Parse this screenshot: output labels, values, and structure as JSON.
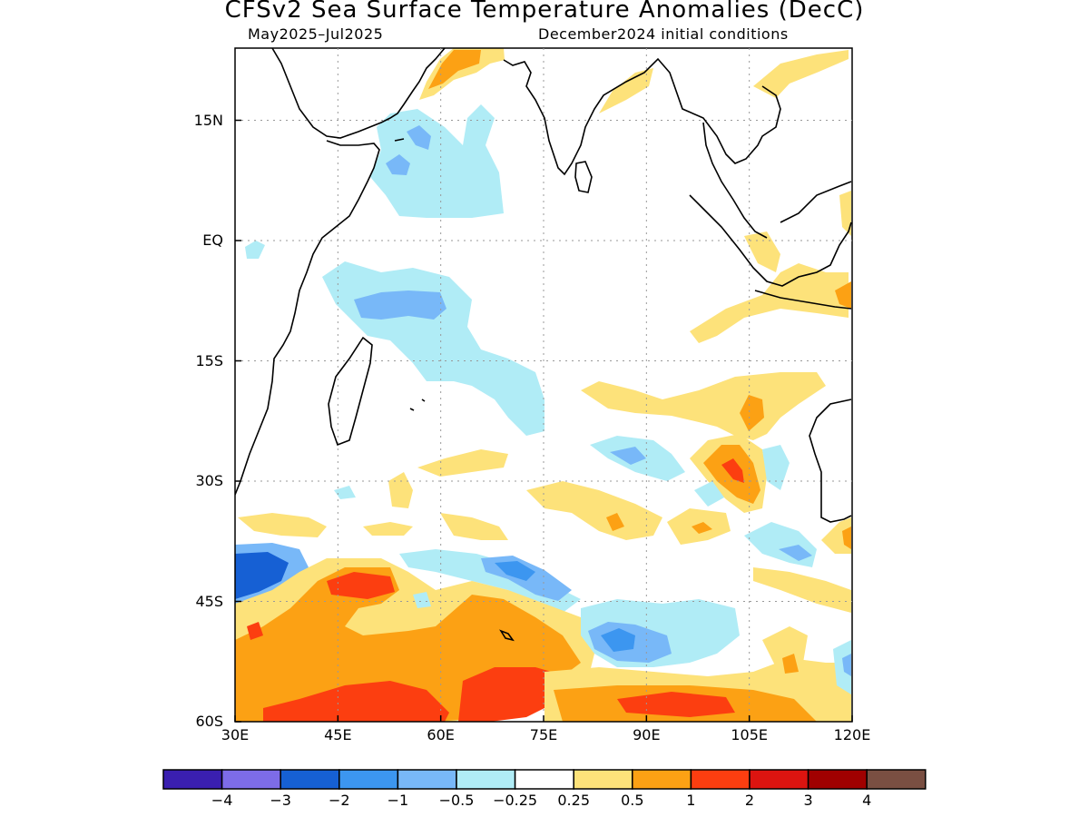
{
  "header": {
    "title": "CFSv2 Sea Surface Temperature Anomalies (DecC)",
    "period": "May2025–Jul2025",
    "init": "December2024 initial conditions"
  },
  "axes": {
    "lon_ticks": [
      {
        "v": 30,
        "label": "30E"
      },
      {
        "v": 45,
        "label": "45E"
      },
      {
        "v": 60,
        "label": "60E"
      },
      {
        "v": 75,
        "label": "75E"
      },
      {
        "v": 90,
        "label": "90E"
      },
      {
        "v": 105,
        "label": "105E"
      },
      {
        "v": 120,
        "label": "120E"
      }
    ],
    "lat_ticks": [
      {
        "v": 15,
        "label": "15N"
      },
      {
        "v": 0,
        "label": "EQ"
      },
      {
        "v": -15,
        "label": "15S"
      },
      {
        "v": -30,
        "label": "30S"
      },
      {
        "v": -45,
        "label": "45S"
      },
      {
        "v": -60,
        "label": "60S"
      }
    ],
    "lon_range": [
      30,
      120
    ],
    "lat_range": [
      -60,
      24
    ]
  },
  "colorbar": {
    "colors": [
      "#3a1fb0",
      "#7d6ce8",
      "#1660d4",
      "#3c96f0",
      "#78b8f8",
      "#b0ecf6",
      "#ffffff",
      "#fde27a",
      "#fca114",
      "#fc3e10",
      "#dc1410",
      "#a00000",
      "#7a4f42"
    ],
    "labels": [
      "−4",
      "−3",
      "−2",
      "−1",
      "−0.5",
      "−0.25",
      "0.25",
      "0.5",
      "1",
      "2",
      "3",
      "4"
    ]
  },
  "anomaly_colors": {
    "neg_0_25": "#b0ecf6",
    "neg_0_5": "#78b8f8",
    "neg_1": "#3c96f0",
    "neg_2": "#1660d4",
    "pos_0_25": "#fde27a",
    "pos_0_5": "#fca114",
    "pos_1": "#fc3e10",
    "pos_2": "#dc1410"
  }
}
